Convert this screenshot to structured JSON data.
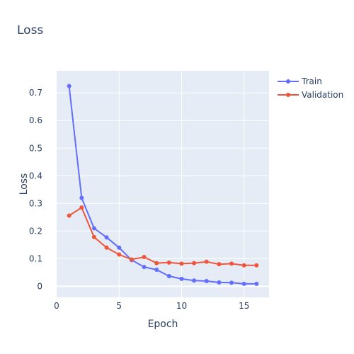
{
  "chart_data": {
    "type": "line",
    "title": "Loss",
    "xlabel": "Epoch",
    "ylabel": "Loss",
    "xlim": [
      0,
      17
    ],
    "ylim": [
      -0.04,
      0.78
    ],
    "x_ticks": [
      0,
      5,
      10,
      15
    ],
    "y_ticks": [
      0,
      0.1,
      0.2,
      0.3,
      0.4,
      0.5,
      0.6,
      0.7
    ],
    "grid": true,
    "legend_position": "top-right",
    "series": [
      {
        "name": "Train",
        "color": "#636efa",
        "x": [
          1,
          2,
          3,
          4,
          5,
          6,
          7,
          8,
          9,
          10,
          11,
          12,
          13,
          14,
          15,
          16
        ],
        "y": [
          0.725,
          0.32,
          0.21,
          0.177,
          0.14,
          0.095,
          0.07,
          0.06,
          0.037,
          0.027,
          0.021,
          0.019,
          0.014,
          0.013,
          0.009,
          0.009
        ]
      },
      {
        "name": "Validation",
        "color": "#ef553b",
        "x": [
          1,
          2,
          3,
          4,
          5,
          6,
          7,
          8,
          9,
          10,
          11,
          12,
          13,
          14,
          15,
          16
        ],
        "y": [
          0.256,
          0.285,
          0.178,
          0.14,
          0.115,
          0.097,
          0.106,
          0.084,
          0.086,
          0.082,
          0.084,
          0.089,
          0.08,
          0.082,
          0.076,
          0.076
        ]
      }
    ]
  }
}
